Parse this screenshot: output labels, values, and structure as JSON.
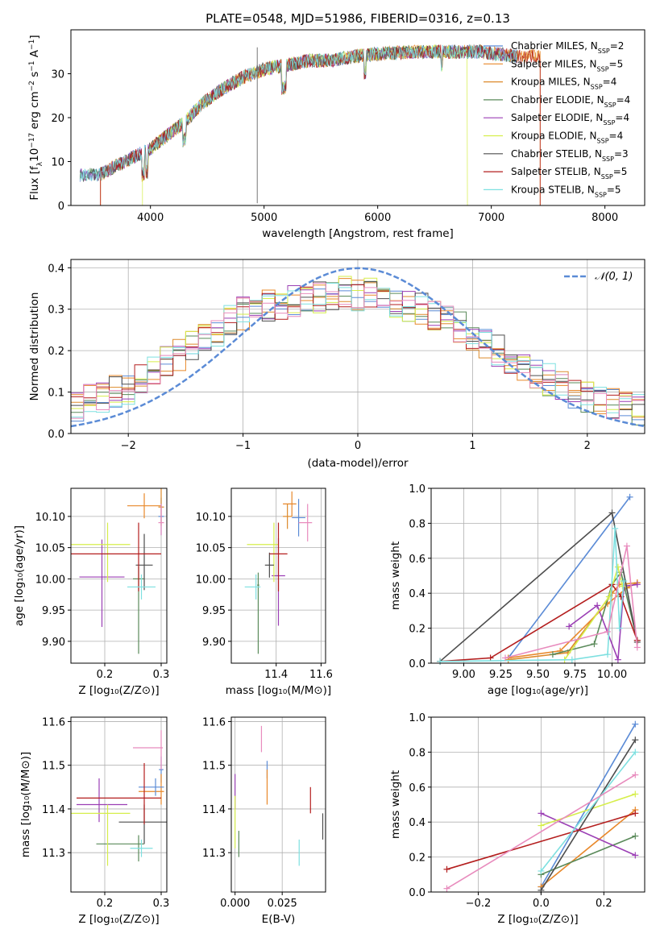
{
  "colors": {
    "MILES_chabrier": "#5b8bd6",
    "MILES_salpeter": "#e8882a",
    "MILES_kroupa": "#dd8a2b",
    "ELODIE_chabrier": "#5a8a5a",
    "ELODIE_salpeter": "#9b3fb5",
    "ELODIE_kroupa": "#d6ee4b",
    "STELIB_chabrier": "#4d4d4d",
    "STELIB_salpeter": "#b41e1e",
    "STELIB_kroupa": "#7ee0e0",
    "norm": "#5b8bd6",
    "pink": "#e88bbd"
  },
  "chart_data": [
    {
      "type": "line",
      "title": "PLATE=0548, MJD=51986, FIBERID=0316, z=0.13",
      "xlabel": "wavelength [Angstrom, rest frame]",
      "ylabel": "Flux [fλ10⁻¹⁷ erg cm⁻² s⁻¹ A⁻¹]",
      "xlim": [
        3300,
        8350
      ],
      "ylim": [
        0,
        40
      ],
      "xticks": [
        "4000",
        "5000",
        "6000",
        "7000",
        "8000"
      ],
      "yticks": [
        "0",
        "10",
        "20",
        "30"
      ],
      "legend_position": "right",
      "series": [
        {
          "name": "Chabrier MILES, N",
          "sub": "SSP",
          "n": "=2"
        },
        {
          "name": "Salpeter MILES, N",
          "sub": "SSP",
          "n": "=5"
        },
        {
          "name": "Kroupa MILES, N",
          "sub": "SSP",
          "n": "=4"
        },
        {
          "name": "Chabrier ELODIE, N",
          "sub": "SSP",
          "n": "=4"
        },
        {
          "name": "Salpeter ELODIE, N",
          "sub": "SSP",
          "n": "=4"
        },
        {
          "name": "Kroupa ELODIE, N",
          "sub": "SSP",
          "n": "=4"
        },
        {
          "name": "Chabrier STELIB, N",
          "sub": "SSP",
          "n": "=3"
        },
        {
          "name": "Salpeter STELIB, N",
          "sub": "SSP",
          "n": "=5"
        },
        {
          "name": "Kroupa STELIB, N",
          "sub": "SSP",
          "n": "=5"
        }
      ],
      "continuum": {
        "x": [
          3400,
          3550,
          3700,
          3850,
          4000,
          4150,
          4300,
          4450,
          4600,
          4800,
          5000,
          5200,
          5400,
          5600,
          5800,
          6000,
          6300,
          6600,
          6900,
          7200
        ],
        "y": [
          7,
          7,
          9,
          11,
          13,
          16,
          19,
          23,
          26,
          29,
          31,
          32,
          33,
          33,
          34,
          34.5,
          35,
          35,
          35,
          34
        ]
      }
    },
    {
      "type": "area",
      "xlabel": "(data-model)/error",
      "ylabel": "Normed distribution",
      "xlim": [
        -2.5,
        2.5
      ],
      "ylim": [
        0,
        0.42
      ],
      "xticks": [
        "−2",
        "−1",
        "0",
        "1",
        "2"
      ],
      "yticks": [
        "0.0",
        "0.1",
        "0.2",
        "0.3",
        "0.4"
      ],
      "grid": true,
      "legend_position": "top-right",
      "legend": "𝒩(0, 1)",
      "series": [
        {
          "values": [
            0.07,
            0.08,
            0.09,
            0.1,
            0.11,
            0.13,
            0.15,
            0.17,
            0.19,
            0.21,
            0.23,
            0.25,
            0.27,
            0.29,
            0.3,
            0.31,
            0.31,
            0.32,
            0.32,
            0.33,
            0.33,
            0.34,
            0.33,
            0.34,
            0.32,
            0.32,
            0.31,
            0.3,
            0.29,
            0.27,
            0.26,
            0.24,
            0.22,
            0.2,
            0.18,
            0.16,
            0.14,
            0.13,
            0.11,
            0.1,
            0.09,
            0.08,
            0.07,
            0.06,
            0.06
          ]
        }
      ]
    },
    {
      "type": "scatter",
      "xlabel": "Z [log₁₀(Z/Z⊙)]",
      "ylabel": "age  [log₁₀(age/yr)]",
      "xlim": [
        0.14,
        0.31
      ],
      "ylim": [
        9.865,
        10.145
      ],
      "xticks": [
        "0.2",
        "0.3"
      ],
      "yticks": [
        "9.90",
        "9.95",
        "10.00",
        "10.05",
        "10.10"
      ],
      "points": [
        {
          "x": 0.3,
          "y": 10.1,
          "xe": [
            0.005,
            0.005
          ],
          "ye": [
            0.03,
            0.03
          ],
          "c": "MILES_chabrier"
        },
        {
          "x": 0.27,
          "y": 10.117,
          "xe": [
            0.03,
            0.03
          ],
          "ye": [
            0.02,
            0.02
          ],
          "c": "MILES_salpeter"
        },
        {
          "x": 0.3,
          "y": 10.115,
          "xe": [
            0.005,
            0.005
          ],
          "ye": [
            0.03,
            0.03
          ],
          "c": "MILES_kroupa"
        },
        {
          "x": 0.26,
          "y": 10.0,
          "xe": [
            0.01,
            0.01
          ],
          "ye": [
            0.12,
            0.02
          ],
          "c": "ELODIE_chabrier"
        },
        {
          "x": 0.195,
          "y": 10.003,
          "xe": [
            0.04,
            0.04
          ],
          "ye": [
            0.08,
            0.06
          ],
          "c": "ELODIE_salpeter"
        },
        {
          "x": 0.205,
          "y": 10.055,
          "xe": [
            0.065,
            0.04
          ],
          "ye": [
            0.06,
            0.035
          ],
          "c": "ELODIE_kroupa"
        },
        {
          "x": 0.27,
          "y": 10.022,
          "xe": [
            0.015,
            0.015
          ],
          "ye": [
            0.04,
            0.05
          ],
          "c": "STELIB_chabrier"
        },
        {
          "x": 0.26,
          "y": 10.04,
          "xe": [
            0.12,
            0.04
          ],
          "ye": [
            0.06,
            0.05
          ],
          "c": "STELIB_salpeter"
        },
        {
          "x": 0.265,
          "y": 9.987,
          "xe": [
            0.025,
            0.025
          ],
          "ye": [
            0.02,
            0.02
          ],
          "c": "STELIB_kroupa"
        },
        {
          "x": 0.3,
          "y": 10.09,
          "xe": [
            0.005,
            0.005
          ],
          "ye": [
            0.02,
            0.03
          ],
          "c": "pink"
        }
      ]
    },
    {
      "type": "scatter",
      "xlabel": "mass [log₁₀(M/M⊙)]",
      "xlim": [
        11.2,
        11.62
      ],
      "ylim": [
        9.865,
        10.145
      ],
      "xticks": [
        "11.4",
        "11.6"
      ],
      "yticks": [
        "9.90",
        "9.95",
        "10.00",
        "10.05",
        "10.10"
      ],
      "points": [
        {
          "x": 11.5,
          "y": 10.098,
          "xe": [
            0.03,
            0.03
          ],
          "ye": [
            0.03,
            0.03
          ],
          "c": "MILES_chabrier"
        },
        {
          "x": 11.47,
          "y": 10.12,
          "xe": [
            0.04,
            0.02
          ],
          "ye": [
            0.02,
            0.02
          ],
          "c": "MILES_salpeter"
        },
        {
          "x": 11.45,
          "y": 10.1,
          "xe": [
            0.02,
            0.02
          ],
          "ye": [
            0.02,
            0.02
          ],
          "c": "MILES_kroupa"
        },
        {
          "x": 11.32,
          "y": 9.99,
          "xe": [
            0.005,
            0.005
          ],
          "ye": [
            0.11,
            0.02
          ],
          "c": "ELODIE_chabrier"
        },
        {
          "x": 11.41,
          "y": 10.005,
          "xe": [
            0.03,
            0.03
          ],
          "ye": [
            0.08,
            0.06
          ],
          "c": "ELODIE_salpeter"
        },
        {
          "x": 11.39,
          "y": 10.055,
          "xe": [
            0.12,
            0.02
          ],
          "ye": [
            0.06,
            0.035
          ],
          "c": "ELODIE_kroupa"
        },
        {
          "x": 11.37,
          "y": 10.022,
          "xe": [
            0.02,
            0.02
          ],
          "ye": [
            0.02,
            0.02
          ],
          "c": "STELIB_chabrier"
        },
        {
          "x": 11.41,
          "y": 10.04,
          "xe": [
            0.04,
            0.04
          ],
          "ye": [
            0.06,
            0.05
          ],
          "c": "STELIB_salpeter"
        },
        {
          "x": 11.31,
          "y": 9.987,
          "xe": [
            0.05,
            0.02
          ],
          "ye": [
            0.02,
            0.02
          ],
          "c": "STELIB_kroupa"
        },
        {
          "x": 11.54,
          "y": 10.09,
          "xe": [
            0.04,
            0.02
          ],
          "ye": [
            0.03,
            0.03
          ],
          "c": "pink"
        }
      ]
    },
    {
      "type": "line",
      "xlabel": "age  [log₁₀(age/yr)]",
      "ylabel": "mass weight",
      "xlim": [
        8.78,
        10.22
      ],
      "ylim": [
        0,
        1.0
      ],
      "xticks": [
        "9.00",
        "9.25",
        "9.50",
        "9.75",
        "10.00"
      ],
      "yticks": [
        "0.0",
        "0.2",
        "0.4",
        "0.6",
        "0.8",
        "1.0"
      ],
      "series": [
        {
          "c": "MILES_chabrier",
          "x": [
            9.3,
            10.12
          ],
          "y": [
            0.03,
            0.95
          ]
        },
        {
          "c": "MILES_salpeter",
          "x": [
            9.3,
            9.65,
            9.97,
            10.1,
            10.17
          ],
          "y": [
            0.03,
            0.07,
            0.34,
            0.43,
            0.46
          ]
        },
        {
          "c": "MILES_kroupa",
          "x": [
            9.3,
            9.7,
            10.0,
            10.05,
            10.17
          ],
          "y": [
            0.02,
            0.06,
            0.4,
            0.45,
            0.46
          ]
        },
        {
          "c": "ELODIE_chabrier",
          "x": [
            9.6,
            9.88,
            10.0,
            10.06,
            10.17
          ],
          "y": [
            0.05,
            0.11,
            0.45,
            0.52,
            0.13
          ]
        },
        {
          "c": "ELODIE_salpeter",
          "x": [
            9.71,
            9.9,
            10.04,
            10.08,
            10.17
          ],
          "y": [
            0.21,
            0.33,
            0.02,
            0.44,
            0.45
          ]
        },
        {
          "c": "ELODIE_kroupa",
          "x": [
            9.68,
            9.98,
            10.04,
            10.07
          ],
          "y": [
            0.02,
            0.38,
            0.55,
            0.44
          ]
        },
        {
          "c": "STELIB_chabrier",
          "x": [
            8.84,
            10.0,
            10.17
          ],
          "y": [
            0.01,
            0.86,
            0.12
          ]
        },
        {
          "c": "STELIB_salpeter",
          "x": [
            8.84,
            9.18,
            10.0,
            10.06,
            10.17
          ],
          "y": [
            0.01,
            0.03,
            0.45,
            0.38,
            0.13
          ]
        },
        {
          "c": "STELIB_kroupa",
          "x": [
            8.84,
            9.73,
            9.97,
            10.02,
            10.05,
            10.08
          ],
          "y": [
            0.01,
            0.02,
            0.05,
            0.77,
            0.2,
            0.47
          ]
        },
        {
          "c": "pink",
          "x": [
            9.28,
            9.97,
            10.1,
            10.17
          ],
          "y": [
            0.03,
            0.18,
            0.67,
            0.09
          ]
        }
      ]
    },
    {
      "type": "scatter",
      "xlabel": "Z [log₁₀(Z/Z⊙)]",
      "ylabel": "mass [log₁₀(M/M⊙)]",
      "xlim": [
        0.14,
        0.31
      ],
      "ylim": [
        11.21,
        11.61
      ],
      "xticks": [
        "0.2",
        "0.3"
      ],
      "yticks": [
        "11.3",
        "11.4",
        "11.5",
        "11.6"
      ],
      "points": [
        {
          "x": 0.3,
          "y": 11.49,
          "xe": [
            0.004,
            0.004
          ],
          "ye": [
            0.03,
            0.03
          ],
          "c": "MILES_chabrier"
        },
        {
          "x": 0.3,
          "y": 11.44,
          "xe": [
            0.04,
            0.005
          ],
          "ye": [
            0.03,
            0.04
          ],
          "c": "MILES_salpeter"
        },
        {
          "x": 0.29,
          "y": 11.45,
          "xe": [
            0.03,
            0.015
          ],
          "ye": [
            0.02,
            0.02
          ],
          "c": "MILES_chabrier"
        },
        {
          "x": 0.26,
          "y": 11.32,
          "xe": [
            0.075,
            0.01
          ],
          "ye": [
            0.04,
            0.02
          ],
          "c": "ELODIE_chabrier"
        },
        {
          "x": 0.19,
          "y": 11.41,
          "xe": [
            0.04,
            0.05
          ],
          "ye": [
            0.04,
            0.06
          ],
          "c": "ELODIE_salpeter"
        },
        {
          "x": 0.205,
          "y": 11.39,
          "xe": [
            0.065,
            0.04
          ],
          "ye": [
            0.12,
            0.02
          ],
          "c": "ELODIE_kroupa"
        },
        {
          "x": 0.27,
          "y": 11.37,
          "xe": [
            0.045,
            0.04
          ],
          "ye": [
            0.05,
            0.04
          ],
          "c": "STELIB_chabrier"
        },
        {
          "x": 0.27,
          "y": 11.425,
          "xe": [
            0.12,
            0.03
          ],
          "ye": [
            0.06,
            0.08
          ],
          "c": "STELIB_salpeter"
        },
        {
          "x": 0.265,
          "y": 11.31,
          "xe": [
            0.02,
            0.02
          ],
          "ye": [
            0.02,
            0.02
          ],
          "c": "STELIB_kroupa"
        },
        {
          "x": 0.3,
          "y": 11.54,
          "xe": [
            0.05,
            0.003
          ],
          "ye": [
            0.05,
            0.04
          ],
          "c": "pink"
        }
      ]
    },
    {
      "type": "scatter",
      "xlabel": "E(B-V)",
      "xlim": [
        -0.002,
        0.048
      ],
      "ylim": [
        11.21,
        11.61
      ],
      "xticks": [
        "0.000",
        "0.025"
      ],
      "yticks": [
        "11.3",
        "11.4",
        "11.5",
        "11.6"
      ],
      "points": [
        {
          "x": 0.017,
          "y": 11.49,
          "ye": [
            0.02,
            0.02
          ],
          "c": "MILES_chabrier"
        },
        {
          "x": 0.017,
          "y": 11.45,
          "ye": [
            0.04,
            0.04
          ],
          "c": "MILES_salpeter"
        },
        {
          "x": 0.0,
          "y": 11.44,
          "ye": [
            0.04,
            0.04
          ],
          "c": "ELODIE_salpeter"
        },
        {
          "x": 0.0,
          "y": 11.36,
          "ye": [
            0.05,
            0.07
          ],
          "c": "ELODIE_kroupa"
        },
        {
          "x": 0.002,
          "y": 11.32,
          "ye": [
            0.03,
            0.03
          ],
          "c": "ELODIE_chabrier"
        },
        {
          "x": 0.014,
          "y": 11.56,
          "ye": [
            0.03,
            0.03
          ],
          "c": "pink"
        },
        {
          "x": 0.04,
          "y": 11.42,
          "ye": [
            0.03,
            0.03
          ],
          "c": "STELIB_salpeter"
        },
        {
          "x": 0.0465,
          "y": 11.36,
          "ye": [
            0.03,
            0.03
          ],
          "c": "STELIB_chabrier"
        },
        {
          "x": 0.034,
          "y": 11.3,
          "ye": [
            0.03,
            0.03
          ],
          "c": "STELIB_kroupa"
        }
      ]
    },
    {
      "type": "line",
      "xlabel": "Z [log₁₀(Z/Z⊙)]",
      "ylabel": "mass weight",
      "xlim": [
        -0.35,
        0.33
      ],
      "ylim": [
        0,
        1.0
      ],
      "xticks": [
        "−0.2",
        "0.0",
        "0.2"
      ],
      "yticks": [
        "0.0",
        "0.2",
        "0.4",
        "0.6",
        "0.8",
        "1.0"
      ],
      "series": [
        {
          "c": "MILES_chabrier",
          "x": [
            0.0,
            0.3
          ],
          "y": [
            0.03,
            0.96
          ]
        },
        {
          "c": "MILES_salpeter",
          "x": [
            0.0,
            0.3
          ],
          "y": [
            0.03,
            0.47
          ]
        },
        {
          "c": "ELODIE_chabrier",
          "x": [
            0.0,
            0.3
          ],
          "y": [
            0.1,
            0.32
          ]
        },
        {
          "c": "ELODIE_salpeter",
          "x": [
            0.0,
            0.3
          ],
          "y": [
            0.45,
            0.21
          ]
        },
        {
          "c": "ELODIE_kroupa",
          "x": [
            0.0,
            0.3
          ],
          "y": [
            0.38,
            0.56
          ]
        },
        {
          "c": "STELIB_chabrier",
          "x": [
            0.0,
            0.3
          ],
          "y": [
            0.01,
            0.87
          ]
        },
        {
          "c": "STELIB_salpeter",
          "x": [
            -0.3,
            0.3
          ],
          "y": [
            0.13,
            0.45
          ]
        },
        {
          "c": "STELIB_kroupa",
          "x": [
            0.0,
            0.3
          ],
          "y": [
            0.12,
            0.8
          ]
        },
        {
          "c": "pink",
          "x": [
            -0.3,
            0.3
          ],
          "y": [
            0.02,
            0.67
          ]
        }
      ],
      "vertical_ticks_at": 0.3
    }
  ]
}
